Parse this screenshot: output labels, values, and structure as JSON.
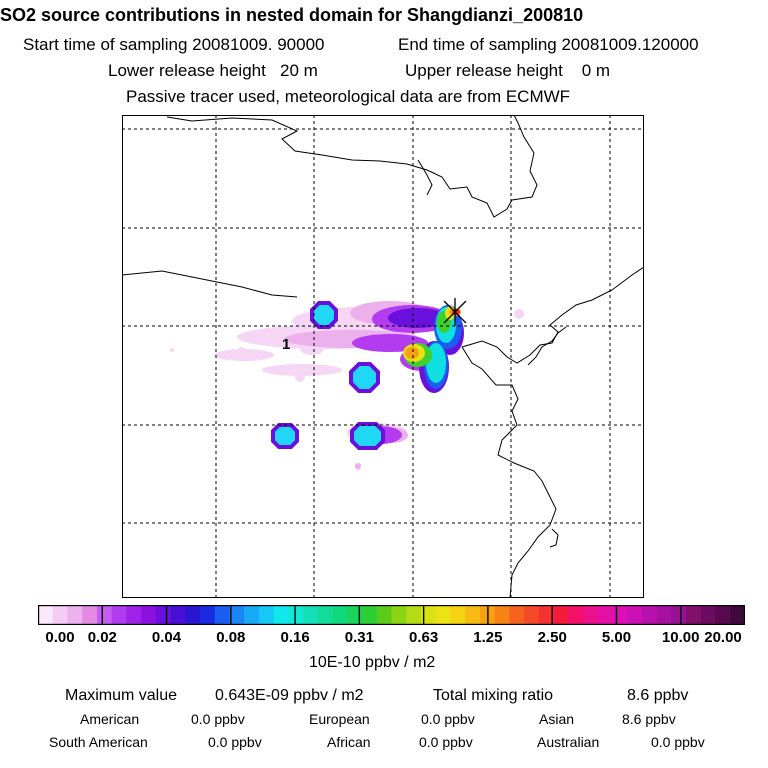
{
  "header": {
    "title": "SO2 source contributions in nested domain for Shangdianzi_200810",
    "start_time": "Start time of sampling 20081009. 90000",
    "end_time": "End time of sampling 20081009.120000",
    "lower_height": "Lower release height   20 m",
    "upper_height": "Upper release height    0 m",
    "tracer_note": "Passive tracer used, meteorological data are from ECMWF"
  },
  "map": {
    "station_label": "1",
    "station_marker": "x-star-icon"
  },
  "legend": {
    "tick_labels": [
      "0.00",
      "0.02",
      "0.04",
      "0.08",
      "0.16",
      "0.31",
      "0.63",
      "1.25",
      "2.50",
      "5.00",
      "10.00",
      "20.00"
    ],
    "colors": [
      "#fbe8fb",
      "#f5ccf5",
      "#eeb0ee",
      "#e48ce4",
      "#c65cf4",
      "#b03cf0",
      "#9f22ea",
      "#8c10e0",
      "#6a10dc",
      "#4810d6",
      "#2a16d2",
      "#1a2ae0",
      "#1a5ef0",
      "#1a86f4",
      "#18aaf6",
      "#16c8f6",
      "#10e8ec",
      "#10e8d8",
      "#14e0b8",
      "#14dc98",
      "#12d87c",
      "#1ad45c",
      "#2cd034",
      "#5acc18",
      "#8cd414",
      "#b4dc14",
      "#d8e214",
      "#ece214",
      "#f6d214",
      "#f6bc14",
      "#f6a214",
      "#f68414",
      "#f4641e",
      "#f44a28",
      "#f43232",
      "#f41a3a",
      "#f4106a",
      "#ec108c",
      "#e410a4",
      "#dc10b4",
      "#cc10b8",
      "#b810ac",
      "#a810a0",
      "#981094",
      "#80106c",
      "#6c0c60",
      "#560a50",
      "#40083c"
    ],
    "units": "10E-10 ppbv / m2"
  },
  "summary": {
    "max_label": "Maximum value",
    "max_value": "0.643E-09 ppbv / m2",
    "total_label": "Total mixing ratio",
    "total_value": "8.6 ppbv",
    "regions": [
      {
        "name": "American",
        "value": "0.0 ppbv"
      },
      {
        "name": "European",
        "value": "0.0 ppbv"
      },
      {
        "name": "Asian",
        "value": "8.6 ppbv"
      },
      {
        "name": "South American",
        "value": "0.0 ppbv"
      },
      {
        "name": "African",
        "value": "0.0 ppbv"
      },
      {
        "name": "Australian",
        "value": "0.0 ppbv"
      }
    ]
  }
}
